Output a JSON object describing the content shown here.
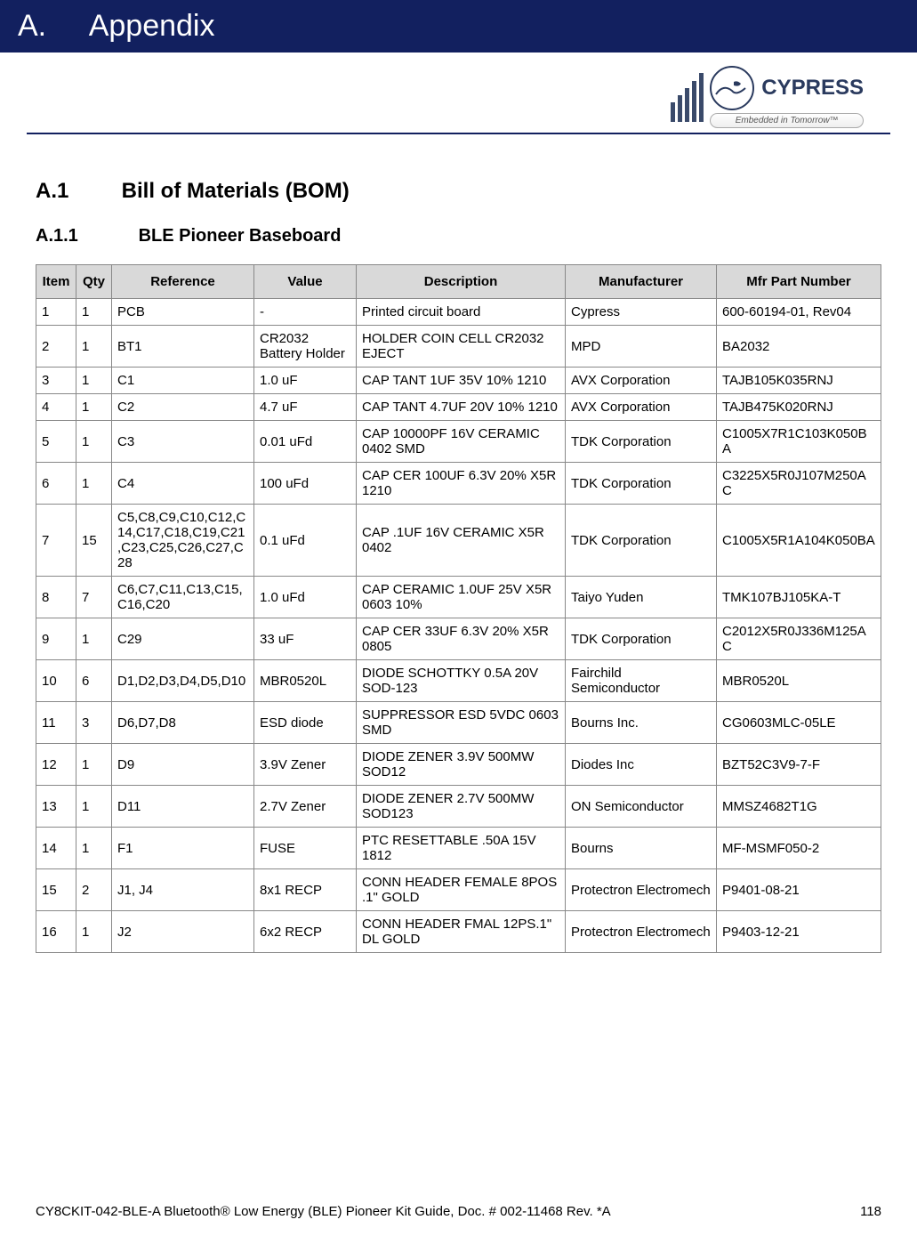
{
  "banner": {
    "letter": "A.",
    "title": "Appendix",
    "background_color": "#12205f",
    "text_color": "#ffffff"
  },
  "logo": {
    "brand": "CYPRESS",
    "tagline": "Embedded in Tomorrow™"
  },
  "section": {
    "number": "A.1",
    "title": "Bill of Materials (BOM)"
  },
  "subsection": {
    "number": "A.1.1",
    "title": "BLE Pioneer Baseboard"
  },
  "table": {
    "columns": [
      "Item",
      "Qty",
      "Reference",
      "Value",
      "Description",
      "Manufacturer",
      "Mfr Part Number"
    ],
    "header_bg": "#d9d9d9",
    "border_color": "#888888",
    "rows": [
      [
        "1",
        "1",
        "PCB",
        "-",
        "Printed circuit board",
        "Cypress",
        "600-60194-01, Rev04"
      ],
      [
        "2",
        "1",
        "BT1",
        "CR2032 Battery Holder",
        "HOLDER COIN CELL CR2032 EJECT",
        "MPD",
        "BA2032"
      ],
      [
        "3",
        "1",
        "C1",
        "1.0 uF",
        "CAP TANT 1UF 35V 10% 1210",
        "AVX Corporation",
        "TAJB105K035RNJ"
      ],
      [
        "4",
        "1",
        "C2",
        "4.7 uF",
        "CAP TANT 4.7UF 20V 10% 1210",
        "AVX Corporation",
        "TAJB475K020RNJ"
      ],
      [
        "5",
        "1",
        "C3",
        "0.01 uFd",
        "CAP 10000PF 16V CERAMIC 0402 SMD",
        "TDK Corporation",
        "C1005X7R1C103K050BA"
      ],
      [
        "6",
        "1",
        "C4",
        "100 uFd",
        "CAP CER 100UF 6.3V 20% X5R 1210",
        "TDK Corporation",
        "C3225X5R0J107M250AC"
      ],
      [
        "7",
        "15",
        "C5,C8,C9,C10,C12,C14,C17,C18,C19,C21,C23,C25,C26,C27,C28",
        "0.1 uFd",
        "CAP .1UF 16V CERAMIC X5R 0402",
        "TDK Corporation",
        "C1005X5R1A104K050BA"
      ],
      [
        "8",
        "7",
        "C6,C7,C11,C13,C15,C16,C20",
        "1.0 uFd",
        "CAP CERAMIC 1.0UF 25V X5R 0603 10%",
        "Taiyo Yuden",
        "TMK107BJ105KA-T"
      ],
      [
        "9",
        "1",
        "C29",
        "33 uF",
        "CAP CER 33UF 6.3V 20% X5R 0805",
        "TDK Corporation",
        "C2012X5R0J336M125AC"
      ],
      [
        "10",
        "6",
        "D1,D2,D3,D4,D5,D10",
        "MBR0520L",
        "DIODE SCHOTTKY 0.5A 20V SOD-123",
        "Fairchild Semiconductor",
        "MBR0520L"
      ],
      [
        "11",
        "3",
        "D6,D7,D8",
        "ESD diode",
        "SUPPRESSOR ESD 5VDC 0603 SMD",
        "Bourns Inc.",
        "CG0603MLC-05LE"
      ],
      [
        "12",
        "1",
        "D9",
        "3.9V Zener",
        "DIODE ZENER 3.9V 500MW SOD12",
        "Diodes Inc",
        "BZT52C3V9-7-F"
      ],
      [
        "13",
        "1",
        "D11",
        "2.7V Zener",
        "DIODE ZENER 2.7V 500MW SOD123",
        "ON Semiconductor",
        "MMSZ4682T1G"
      ],
      [
        "14",
        "1",
        "F1",
        "FUSE",
        "PTC RESETTABLE .50A 15V 1812",
        "Bourns",
        "MF-MSMF050-2"
      ],
      [
        "15",
        "2",
        "J1, J4",
        "8x1 RECP",
        "CONN HEADER FEMALE 8POS .1\" GOLD",
        "Protectron Electromech",
        "P9401-08-21"
      ],
      [
        "16",
        "1",
        "J2",
        "6x2 RECP",
        "CONN HEADER FMAL 12PS.1\" DL GOLD",
        "Protectron Electromech",
        "P9403-12-21"
      ]
    ]
  },
  "footer": {
    "doc": "CY8CKIT-042-BLE-A Bluetooth® Low Energy (BLE) Pioneer Kit Guide, Doc. # 002-11468 Rev. *A",
    "page": "118"
  }
}
